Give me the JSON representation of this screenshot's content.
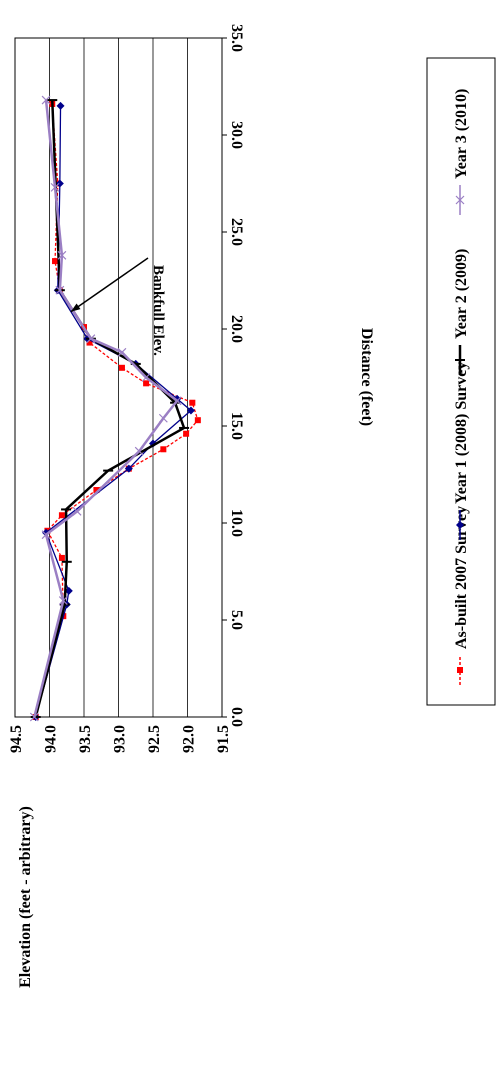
{
  "chart_data": {
    "type": "line",
    "orientation": "rotated-90-clockwise",
    "title": "",
    "xlabel": "Distance (feet)",
    "ylabel": "Elevation (feet - arbitrary)",
    "xlim": [
      0,
      35
    ],
    "ylim": [
      91.5,
      94.5
    ],
    "x_ticks": [
      "0.0",
      "5.0",
      "10.0",
      "15.0",
      "20.0",
      "25.0",
      "30.0",
      "35.0"
    ],
    "y_ticks": [
      "94.5",
      "94.0",
      "93.5",
      "93.0",
      "92.5",
      "92.0",
      "91.5"
    ],
    "grid": true,
    "legend_position": "bottom",
    "annotation": {
      "text": "Bankfull Elev.",
      "points_to": [
        21.2,
        93.72
      ]
    },
    "series": [
      {
        "name": "As-built 2007 Survey",
        "color": "#ff0000",
        "line": "dashed",
        "marker": "square",
        "x": [
          0.0,
          5.2,
          8.2,
          9.6,
          10.4,
          11.7,
          12.8,
          13.8,
          14.6,
          15.3,
          16.2,
          17.2,
          18.0,
          19.3,
          20.1,
          22.0,
          23.5,
          27.5,
          31.6
        ],
        "y": [
          94.2,
          93.8,
          93.82,
          94.03,
          93.82,
          93.32,
          92.85,
          92.35,
          92.02,
          91.85,
          91.93,
          92.6,
          92.95,
          93.42,
          93.5,
          93.85,
          93.92,
          93.88,
          93.96
        ]
      },
      {
        "name": "Year 1 (2008) Survey",
        "color": "#00008b",
        "line": "solid",
        "marker": "diamond",
        "x": [
          0.0,
          5.8,
          6.5,
          9.5,
          12.8,
          14.1,
          15.8,
          16.4,
          18.2,
          19.5,
          22.0,
          27.5,
          31.5
        ],
        "y": [
          94.2,
          93.75,
          93.72,
          94.05,
          92.85,
          92.5,
          91.95,
          92.15,
          92.75,
          93.45,
          93.88,
          93.85,
          93.84
        ]
      },
      {
        "name": "Year 2 (2009)",
        "color": "#000000",
        "line": "solid",
        "marker": "dash",
        "x": [
          0.0,
          5.8,
          8.0,
          10.7,
          12.7,
          14.9,
          16.2,
          18.2,
          19.5,
          22.0,
          31.8
        ],
        "y": [
          94.2,
          93.78,
          93.75,
          93.76,
          93.15,
          92.05,
          92.18,
          92.75,
          93.4,
          93.85,
          93.96
        ]
      },
      {
        "name": "Year 3 (2010)",
        "color": "#9b7fc4",
        "line": "solid",
        "marker": "x",
        "x": [
          0.0,
          6.0,
          9.4,
          10.6,
          13.7,
          15.4,
          16.3,
          17.5,
          18.8,
          19.5,
          22.0,
          23.8,
          27.3,
          31.8
        ],
        "y": [
          94.22,
          93.8,
          94.05,
          93.6,
          92.7,
          92.35,
          92.15,
          92.6,
          92.95,
          93.4,
          93.85,
          93.82,
          93.92,
          94.05
        ]
      }
    ]
  }
}
